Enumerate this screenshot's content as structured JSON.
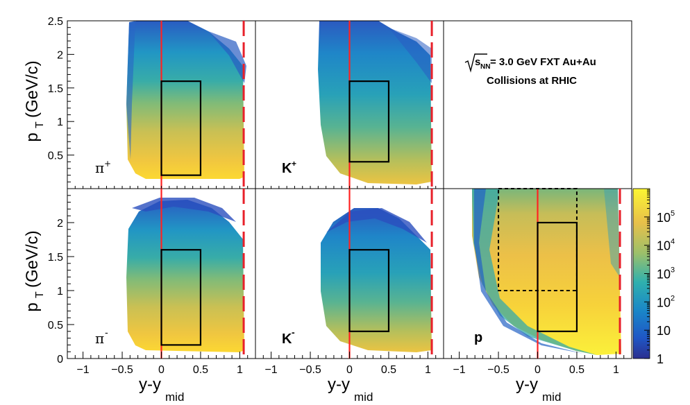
{
  "chart_data": {
    "type": "heatmap",
    "title_line1": "= 3.0 GeV FXT Au+Au",
    "title_sqrt_symbol": "s",
    "title_sqrt_sub": "NN",
    "title_line2": "Collisions at RHIC",
    "xlabel": "y-y",
    "xlabel_sub": "mid",
    "ylabel": "p",
    "ylabel_sub": "T",
    "ylabel_unit": "(GeV/c)",
    "xlim": [
      -1.2,
      1.2
    ],
    "ylim_top_row": [
      0,
      2.5
    ],
    "ylim_bottom_row": [
      0,
      2.5
    ],
    "x_ticks": [
      "−1",
      "−0.5",
      "0",
      "0.5",
      "1"
    ],
    "y_ticks_top": [
      "0.5",
      "1",
      "1.5",
      "2",
      "2.5"
    ],
    "y_ticks_bottom": [
      "0",
      "0.5",
      "1",
      "1.5",
      "2"
    ],
    "colorbar_ticks": [
      "1",
      "10",
      "10",
      "10",
      "10",
      "10"
    ],
    "colorbar_exponents": [
      "",
      "",
      "2",
      "3",
      "4",
      "5"
    ],
    "colorbar_scale": "log",
    "colorbar_range": [
      1,
      1000000
    ],
    "panels": [
      {
        "label": "π",
        "label_sup": "+",
        "solid_box": {
          "x": [
            0,
            0.5
          ],
          "y": [
            0.2,
            1.6
          ]
        },
        "midrapidity_line": 0,
        "target_line": 1.05
      },
      {
        "label": "K",
        "label_sup": "+",
        "solid_box": {
          "x": [
            0,
            0.5
          ],
          "y": [
            0.4,
            1.6
          ]
        },
        "midrapidity_line": 0,
        "target_line": 1.05
      },
      {
        "label": "π",
        "label_sup": "-",
        "solid_box": {
          "x": [
            0,
            0.5
          ],
          "y": [
            0.2,
            1.6
          ]
        },
        "midrapidity_line": 0,
        "target_line": 1.05
      },
      {
        "label": "K",
        "label_sup": "-",
        "solid_box": {
          "x": [
            0,
            0.5
          ],
          "y": [
            0.4,
            1.6
          ]
        },
        "midrapidity_line": 0,
        "target_line": 1.05
      },
      {
        "label": "p",
        "label_sup": "",
        "solid_box": {
          "x": [
            0,
            0.5
          ],
          "y": [
            0.4,
            2.0
          ]
        },
        "dashed_box": {
          "x": [
            -0.5,
            0.5
          ],
          "y": [
            1.0,
            2.5
          ]
        },
        "midrapidity_line": 0,
        "target_line": 1.05
      }
    ],
    "colors": {
      "midrapidity_line": "#ff2222",
      "target_line": "#e8202a",
      "box": "#000000"
    }
  }
}
